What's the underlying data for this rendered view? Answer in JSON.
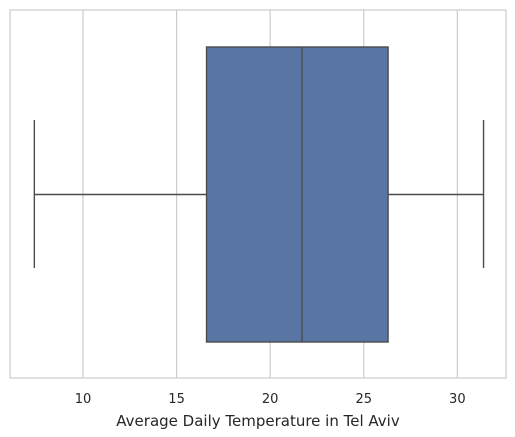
{
  "chart_data": {
    "type": "box",
    "title": "",
    "xlabel": "Average Daily Temperature in Tel Aviv",
    "ylabel": "",
    "orientation": "horizontal",
    "grid": "vertical",
    "xlim": [
      6.1,
      32.6
    ],
    "xticks": [
      10,
      15,
      20,
      25,
      30
    ],
    "xtick_labels": [
      "10",
      "15",
      "20",
      "25",
      "30"
    ],
    "series": [
      {
        "whisker_low": 7.4,
        "q1": 16.6,
        "median": 21.7,
        "q3": 26.3,
        "whisker_high": 31.4
      }
    ],
    "colors": {
      "box_fill": "#5975a4",
      "line": "#4c4c4c",
      "grid": "#cccccc",
      "frame": "#cccccc",
      "background": "#ffffff"
    }
  }
}
